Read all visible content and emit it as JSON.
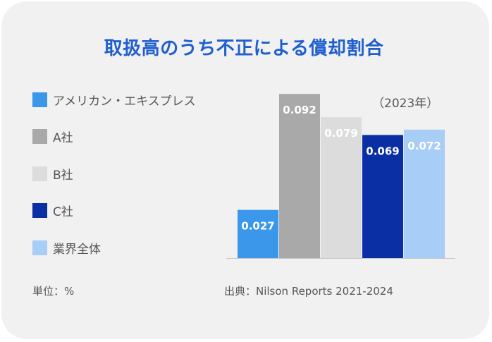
{
  "title": "取扱高のうち不正による償却割合",
  "year_note": "（2023年）",
  "unit_note": "単位：%",
  "source_note": "出典：Nilson Reports 2021-2024",
  "chart_data": {
    "type": "bar",
    "categories": [
      "アメリカン・エキスプレス",
      "A社",
      "B社",
      "C社",
      "業界全体"
    ],
    "values": [
      0.027,
      0.092,
      0.079,
      0.069,
      0.072
    ],
    "value_labels": [
      "0.027",
      "0.092",
      "0.079",
      "0.069",
      "0.072"
    ],
    "colors": [
      "#3a97ea",
      "#a9a9a9",
      "#dcdcdc",
      "#0a2fa5",
      "#a8cdf7"
    ],
    "label_colors": [
      "#ffffff",
      "#ffffff",
      "#ffffff",
      "#ffffff",
      "#ffffff"
    ],
    "ylim": [
      0,
      0.1
    ],
    "grid": false,
    "legend_position": "left"
  }
}
